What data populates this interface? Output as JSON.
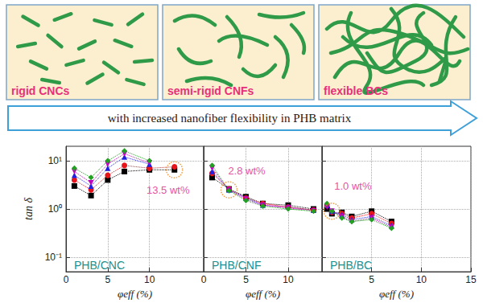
{
  "diagram": {
    "panels": [
      {
        "label": "rigid CNCs"
      },
      {
        "label": "semi-rigid CNFs"
      },
      {
        "label": "flexible BCs"
      }
    ],
    "arrow_text": "with increased nanofiber flexibility in PHB matrix"
  },
  "chart_data": [
    {
      "type": "line",
      "title": "PHB/CNC",
      "xlabel": "φeff (%)",
      "ylabel": "tan δ",
      "log": "y",
      "grid": true,
      "xlim": [
        0,
        16.5
      ],
      "xticks": [
        0,
        5,
        10
      ],
      "ylim": [
        0.05,
        20
      ],
      "yticks": [
        {
          "value": 0.1,
          "label": "10⁻¹"
        },
        {
          "value": 1,
          "label": "10⁰"
        },
        {
          "value": 10,
          "label": "10¹"
        }
      ],
      "x": [
        1,
        3,
        5,
        7,
        10,
        13
      ],
      "series": [
        {
          "color": "#000000",
          "marker": "square",
          "line_style": "dotted",
          "values": [
            3.0,
            1.9,
            4.0,
            6.0,
            6.5,
            6.5
          ]
        },
        {
          "color": "#e8141c",
          "marker": "circle",
          "line_style": "dotted",
          "values": [
            4.0,
            2.5,
            5.0,
            8.0,
            7.0,
            7.5
          ]
        },
        {
          "color": "#2020e0",
          "marker": "triangle",
          "line_style": "dotted",
          "values": [
            5.0,
            3.0,
            7.0,
            12.0,
            8.5,
            null
          ]
        },
        {
          "color": "#c000c0",
          "marker": "triangle-down",
          "line_style": "dotted",
          "values": [
            6.0,
            3.5,
            8.5,
            14.0,
            9.0,
            null
          ]
        },
        {
          "color": "#22a022",
          "marker": "diamond",
          "line_style": "dotted",
          "values": [
            7.0,
            4.5,
            10.0,
            16.0,
            10.0,
            null
          ]
        }
      ],
      "annotations": [
        {
          "text": "13.5 wt%",
          "x": 13,
          "y": 6.5,
          "color": "#e0208a"
        }
      ]
    },
    {
      "type": "line",
      "title": "PHB/CNF",
      "xlabel": "φeff (%)",
      "tick_labels": "x",
      "log": "y",
      "grid": true,
      "xlim": [
        0,
        14
      ],
      "xticks": [
        0,
        5,
        10
      ],
      "ylim": [
        0.05,
        20
      ],
      "yticks": [
        {
          "value": 0.1,
          "label": "10⁻¹"
        },
        {
          "value": 1,
          "label": "10⁰"
        },
        {
          "value": 10,
          "label": "10¹"
        }
      ],
      "x": [
        1,
        3,
        5,
        7,
        10,
        13
      ],
      "series": [
        {
          "color": "#000000",
          "marker": "square",
          "line_style": "dotted",
          "values": [
            4.5,
            2.6,
            1.8,
            1.3,
            1.2,
            1.0
          ]
        },
        {
          "color": "#e8141c",
          "marker": "circle",
          "line_style": "dotted",
          "values": [
            5.5,
            2.6,
            1.7,
            1.3,
            1.1,
            0.95
          ]
        },
        {
          "color": "#2020e0",
          "marker": "triangle",
          "line_style": "dotted",
          "values": [
            6.0,
            2.5,
            1.7,
            1.2,
            1.1,
            0.95
          ]
        },
        {
          "color": "#c000c0",
          "marker": "triangle-down",
          "line_style": "dotted",
          "values": [
            7.0,
            2.5,
            1.6,
            1.2,
            1.05,
            0.92
          ]
        },
        {
          "color": "#22a022",
          "marker": "diamond",
          "line_style": "dotted",
          "values": [
            8.0,
            2.4,
            1.5,
            1.15,
            1.0,
            0.9
          ]
        }
      ],
      "annotations": [
        {
          "text": "2.8 wt%",
          "x": 3,
          "y": 2.5,
          "color": "#e0208a"
        }
      ]
    },
    {
      "type": "line",
      "title": "PHB/BC",
      "xlabel": "φeff (%)",
      "tick_labels": "x",
      "log": "y",
      "grid": true,
      "xlim": [
        0,
        15
      ],
      "xticks": [
        5,
        10,
        15
      ],
      "ylim": [
        0.05,
        20
      ],
      "yticks": [
        {
          "value": 0.1,
          "label": "10⁻¹"
        },
        {
          "value": 1,
          "label": "10⁰"
        },
        {
          "value": 10,
          "label": "10¹"
        }
      ],
      "x": [
        0.5,
        1,
        2,
        3,
        5,
        7
      ],
      "series": [
        {
          "color": "#000000",
          "marker": "square",
          "line_style": "dotted",
          "values": [
            1.0,
            0.8,
            0.85,
            0.7,
            0.9,
            0.55
          ]
        },
        {
          "color": "#e8141c",
          "marker": "circle",
          "line_style": "dotted",
          "values": [
            1.2,
            0.85,
            0.8,
            0.65,
            0.8,
            0.5
          ]
        },
        {
          "color": "#2020e0",
          "marker": "triangle",
          "line_style": "dotted",
          "values": [
            1.2,
            0.9,
            0.75,
            0.6,
            0.7,
            0.45
          ]
        },
        {
          "color": "#c000c0",
          "marker": "triangle-down",
          "line_style": "dotted",
          "values": [
            1.1,
            0.9,
            0.7,
            0.55,
            0.65,
            0.42
          ]
        },
        {
          "color": "#22a022",
          "marker": "diamond",
          "line_style": "dotted",
          "values": [
            1.3,
            0.9,
            0.65,
            0.55,
            0.6,
            0.4
          ]
        }
      ],
      "annotations": [
        {
          "text": "1.0 wt%",
          "x": 1,
          "y": 0.9,
          "color": "#e0208a"
        }
      ]
    }
  ]
}
